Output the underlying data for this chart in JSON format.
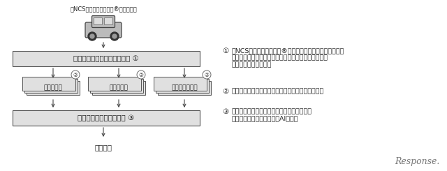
{
  "bg_color": "#ffffff",
  "box_fill": "#e0e0e0",
  "box_edge": "#555555",
  "text_color": "#222222",
  "car_label": "『NCSドライブドクター®』搭載車两",
  "box1_label": "時系列マルチモーダルデータ ①",
  "box2a_label": "音声データ",
  "box2b_label": "映像データ",
  "box2c_label": "センサーデータ",
  "box3_label": "マルチモーダル深層学習 ③",
  "result_label": "判定結果",
  "circle2": "②",
  "desc1_num": "①",
  "desc1_text": "『NCSドライブドクター®』から音声、映像、センサーー\nデータ（速度、加速度情報など）である時系列マルチ\nモーダルデータを抄出",
  "desc2_num": "②",
  "desc2_text": "音声、映像、センサーデータを時系列データに分解",
  "desc3_num": "③",
  "desc3_text": "マルチモーダル深層学習により、通常運転、\nヒヤリハット、交通事故をAIが判定",
  "response_text": "Response."
}
